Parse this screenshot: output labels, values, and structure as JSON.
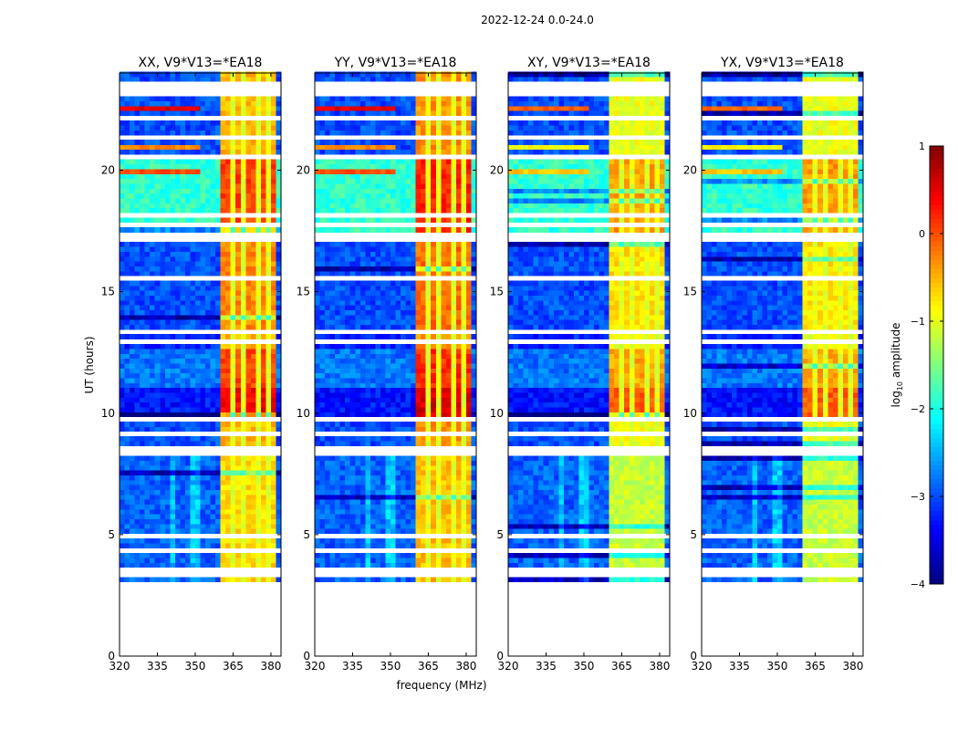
{
  "chart_data": {
    "type": "heatmap",
    "suptitle": "2022-12-24 0.0-24.0",
    "xlabel": "frequency (MHz)",
    "ylabel": "UT (hours)",
    "xlim": [
      320,
      384
    ],
    "ylim": [
      0,
      24
    ],
    "xticks": [
      320,
      335,
      350,
      365,
      380
    ],
    "yticks": [
      0,
      5,
      10,
      15,
      20
    ],
    "panels": [
      {
        "title": "XX, V9*V13=*EA18",
        "band_offset": 0.1
      },
      {
        "title": "YY, V9*V13=*EA18",
        "band_offset": 0.25
      },
      {
        "title": "XY, V9*V13=*EA18",
        "band_offset": -0.35
      },
      {
        "title": "YX, V9*V13=*EA18",
        "band_offset": -0.35
      }
    ],
    "colorbar": {
      "label": "log10 amplitude",
      "label_main": "log",
      "label_sub": "10",
      "label_rest": " amplitude",
      "vmin": -4,
      "vmax": 1,
      "ticks": [
        "1",
        "0",
        "−1",
        "−2",
        "−3",
        "−4"
      ],
      "tick_values": [
        1,
        0,
        -1,
        -2,
        -3,
        -4
      ]
    },
    "data_start_hour": 3.05,
    "bright_band_mhz": [
      361,
      381
    ],
    "band_gaps_mhz": [
      364.5,
      369.5,
      374.5,
      379.5
    ],
    "segments": [
      {
        "t0": 3.05,
        "t1": 8.1,
        "bg": -2.9,
        "band": -0.8
      },
      {
        "t0": 8.1,
        "t1": 9.8,
        "bg": -3.0,
        "band": -0.6
      },
      {
        "t0": 9.8,
        "t1": 11.0,
        "bg": -3.3,
        "band": 0.3
      },
      {
        "t0": 11.0,
        "t1": 12.6,
        "bg": -2.8,
        "band": -0.1
      },
      {
        "t0": 12.6,
        "t1": 13.4,
        "bg": -3.2,
        "band": -0.6
      },
      {
        "t0": 13.4,
        "t1": 17.0,
        "bg": -3.0,
        "band": -0.4
      },
      {
        "t0": 17.0,
        "t1": 20.5,
        "bg": -1.9,
        "band": -0.05
      },
      {
        "t0": 20.5,
        "t1": 24.0,
        "bg": -3.0,
        "band": -0.6
      }
    ],
    "flagged_hours": [
      3.2,
      3.5,
      4.2,
      4.8,
      8.2,
      8.5,
      9.0,
      9.7,
      12.9,
      13.3,
      15.5,
      17.1,
      17.3,
      17.7,
      18.0,
      20.5,
      21.3,
      22.0,
      23.0,
      23.2,
      23.4
    ],
    "rfi_lines": [
      {
        "hour": 22.4,
        "value": 0.5
      },
      {
        "hour": 21.3,
        "value": 0.2
      },
      {
        "hour": 20.8,
        "value": -0.3
      },
      {
        "hour": 19.8,
        "value": 0.0
      }
    ]
  }
}
